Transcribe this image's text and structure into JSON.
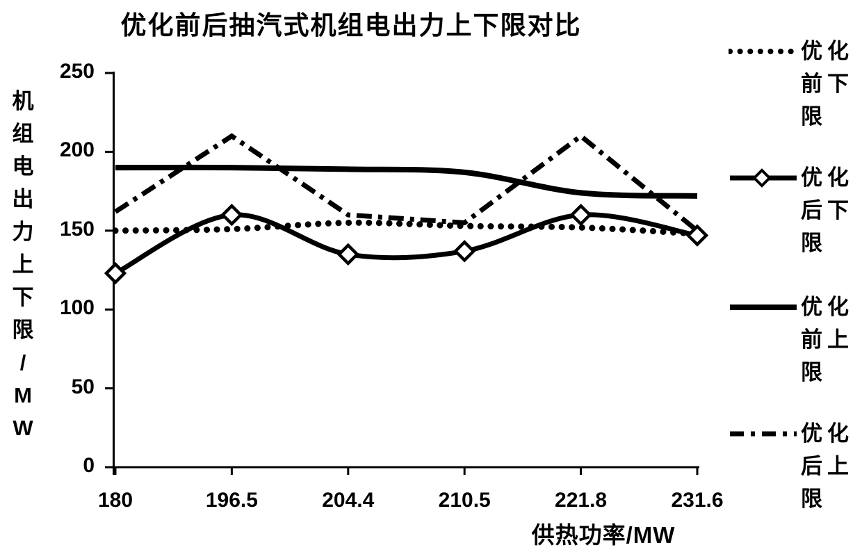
{
  "chart_data": {
    "type": "line",
    "title": "优化前后抽汽式机组电出力上下限对比",
    "xlabel": "供热功率/MW",
    "ylabel": "机组电出力上下限/MW",
    "ylabel_vertical": "机\n组\n电\n出\n力\n上\n下\n限\n/\nM\nW",
    "categories": [
      "180",
      "196.5",
      "204.4",
      "210.5",
      "221.8",
      "231.6"
    ],
    "y_ticks": [
      0,
      50,
      100,
      150,
      200,
      250
    ],
    "ylim": [
      0,
      250
    ],
    "grid": false,
    "legend_position": "right",
    "line_color": "#000000",
    "background_color": "#ffffff",
    "series": [
      {
        "key": "pre-opt-lower",
        "name": "优化前下限",
        "style": "dotted",
        "marker": "none",
        "smooth": true,
        "values": [
          150,
          151,
          155,
          153,
          152,
          148
        ]
      },
      {
        "key": "post-opt-lower",
        "name": "优化后下限",
        "style": "solid",
        "marker": "diamond",
        "smooth": true,
        "values": [
          123,
          160,
          135,
          137,
          160,
          147
        ]
      },
      {
        "key": "pre-opt-upper",
        "name": "优化前上限",
        "style": "solid",
        "marker": "none",
        "smooth": true,
        "values": [
          190,
          190,
          189,
          187,
          174,
          172
        ]
      },
      {
        "key": "post-opt-upper",
        "name": "优化后上限",
        "style": "dashdot",
        "marker": "none",
        "smooth": false,
        "values": [
          162,
          210,
          160,
          155,
          210,
          150
        ]
      }
    ]
  }
}
